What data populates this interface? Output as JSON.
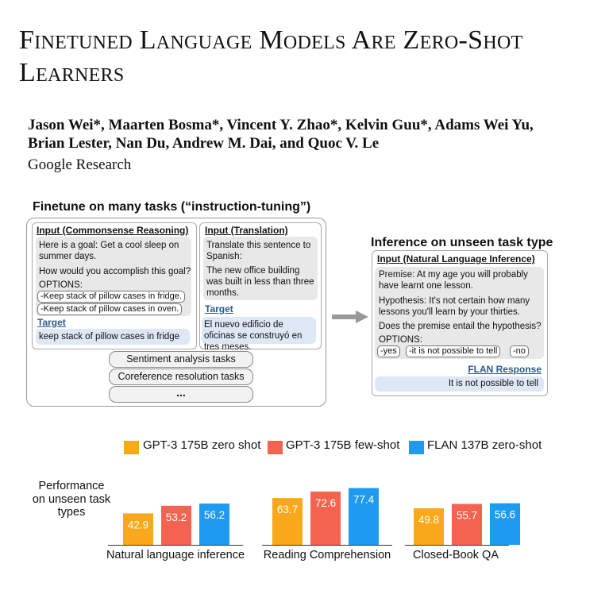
{
  "paper": {
    "title_line1": "Finetuned Language Models Are Zero-Shot",
    "title_line2": "Learners",
    "authors_line1": "Jason Wei*, Maarten Bosma*, Vincent Y. Zhao*, Kelvin Guu*, Adams Wei Yu,",
    "authors_line2": "Brian Lester, Nan Du, Andrew M. Dai, and Quoc V. Le",
    "affiliation": "Google Research"
  },
  "figure": {
    "finetune_heading": "Finetune on many tasks (“instruction-tuning”)",
    "commonsense": {
      "title": "Input (Commonsense Reasoning)",
      "goal": "Here is a goal: Get a cool sleep on summer days.",
      "question": "How would you accomplish this goal?",
      "options_label": "OPTIONS:",
      "options": [
        "-Keep stack of pillow cases in fridge.",
        "-Keep stack of pillow cases in oven."
      ],
      "target_label": "Target",
      "target": "keep stack of pillow cases in fridge"
    },
    "translation": {
      "title": "Input (Translation)",
      "instruction": "Translate this sentence to Spanish:",
      "sentence": "The new office building was built in less than three months.",
      "target_label": "Target",
      "target": "El nuevo edificio de oficinas se construyó en tres meses."
    },
    "task_pills": [
      "Sentiment analysis tasks",
      "Coreference resolution tasks",
      "..."
    ],
    "inference_heading": "Inference on unseen task type",
    "nli": {
      "title": "Input (Natural Language Inference)",
      "premise": "Premise: At my age you will probably have learnt one lesson.",
      "hypothesis": "Hypothesis: It's not certain how many lessons you'll learn by your thirties.",
      "question": "Does the premise entail the hypothesis?",
      "options_label": "OPTIONS:",
      "options": [
        "-yes",
        "-it is not possible to tell",
        "-no"
      ],
      "response_label": "FLAN Response",
      "response": "It is not possible to tell"
    }
  },
  "chart_data": {
    "type": "bar",
    "ylabel": "Performance on unseen task types",
    "categories": [
      "Natural language inference",
      "Reading Comprehension",
      "Closed-Book QA"
    ],
    "series": [
      {
        "name": "GPT-3 175B zero shot",
        "color": "#F9A81B",
        "values": [
          42.9,
          63.7,
          49.8
        ]
      },
      {
        "name": "GPT-3 175B few-shot",
        "color": "#F4634F",
        "values": [
          53.2,
          72.6,
          55.7
        ]
      },
      {
        "name": "FLAN 137B zero-shot",
        "color": "#1E9BF0",
        "values": [
          56.2,
          77.4,
          56.6
        ]
      }
    ]
  }
}
